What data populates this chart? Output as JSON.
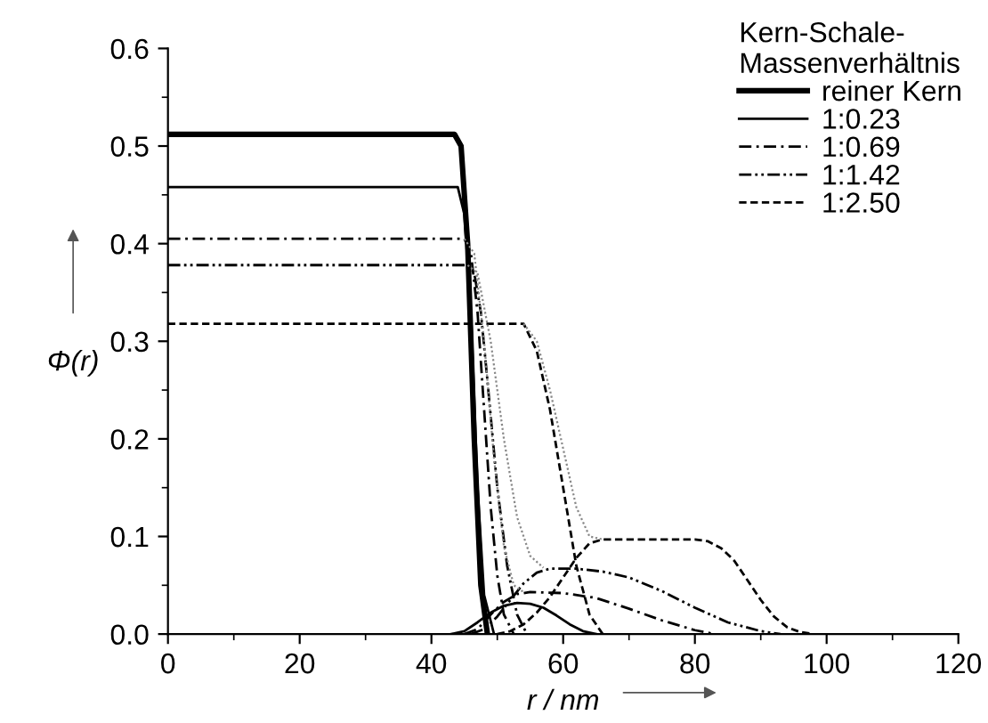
{
  "chart_data": {
    "type": "line",
    "xlabel": "r / nm",
    "ylabel": "Φ(r)",
    "legend_title": "Kern-Schale-\nMassenverhältnis",
    "xlim": [
      0,
      120
    ],
    "xticks": [
      0,
      20,
      40,
      60,
      80,
      100,
      120
    ],
    "ylim": [
      0,
      0.6
    ],
    "yticks": [
      {
        "value": 0,
        "label": "0.0"
      },
      0.1,
      0.2,
      0.3,
      0.4,
      0.5,
      0.6
    ],
    "grid": false,
    "legend": "top right",
    "marker": "none",
    "series": [
      {
        "name": "reiner Kern",
        "color": "#000000",
        "line_style": "solid",
        "x": [
          0,
          43.5,
          44.5,
          45.5,
          46.5,
          47.5,
          48.5
        ],
        "values": [
          0.512,
          0.512,
          0.5,
          0.4,
          0.2,
          0.05,
          0
        ]
      },
      {
        "name": "1:0.23",
        "color": "#000000",
        "line_style": "solid",
        "x": [
          0,
          44,
          45,
          46,
          47,
          48,
          49.5
        ],
        "values": [
          0.458,
          0.458,
          0.43,
          0.33,
          0.15,
          0.04,
          0
        ]
      },
      {
        "name": "1:0.69",
        "color": "#000000",
        "line_style": "dashdot",
        "x": [
          0,
          45,
          46,
          47,
          48,
          49,
          50,
          51,
          52.5
        ],
        "values": [
          0.405,
          0.405,
          0.39,
          0.33,
          0.23,
          0.13,
          0.06,
          0.02,
          0
        ]
      },
      {
        "name": "1:1.42",
        "color": "#000000",
        "line_style": "dashdotdot",
        "x": [
          0,
          45.5,
          46.5,
          47.5,
          48.5,
          50,
          51.5,
          53,
          54.5
        ],
        "values": [
          0.378,
          0.378,
          0.37,
          0.33,
          0.26,
          0.15,
          0.07,
          0.02,
          0
        ]
      },
      {
        "name": "1:2.50",
        "color": "#000000",
        "line_style": "dashed",
        "x": [
          0,
          54,
          56,
          58,
          60,
          62,
          64,
          66
        ],
        "values": [
          0.318,
          0.318,
          0.29,
          0.23,
          0.15,
          0.07,
          0.02,
          0
        ]
      },
      {
        "color": "#000000",
        "line_style": "solid",
        "x": [
          43,
          45,
          47,
          49,
          51,
          53,
          55,
          57,
          59,
          61,
          63,
          65
        ],
        "values": [
          0,
          0.003,
          0.012,
          0.022,
          0.029,
          0.032,
          0.031,
          0.027,
          0.019,
          0.01,
          0.003,
          0
        ]
      },
      {
        "color": "#000000",
        "line_style": "dashdot",
        "x": [
          45,
          47,
          49,
          51,
          53,
          55,
          60,
          65,
          70,
          75,
          80,
          83
        ],
        "values": [
          0,
          0.005,
          0.02,
          0.033,
          0.041,
          0.043,
          0.042,
          0.037,
          0.026,
          0.014,
          0.004,
          0
        ]
      },
      {
        "color": "#000000",
        "line_style": "dashdotdot",
        "x": [
          46,
          48,
          50,
          52,
          54,
          56,
          58,
          62,
          66,
          70,
          75,
          80,
          85,
          90,
          93
        ],
        "values": [
          0,
          0.005,
          0.018,
          0.035,
          0.052,
          0.063,
          0.067,
          0.067,
          0.064,
          0.058,
          0.044,
          0.027,
          0.012,
          0.003,
          0
        ]
      },
      {
        "color": "#000000",
        "line_style": "dashed",
        "x": [
          50,
          52,
          54,
          56,
          58,
          60,
          62,
          64,
          66,
          80,
          82,
          84,
          86,
          88,
          90,
          92,
          94,
          96,
          98
        ],
        "values": [
          0,
          0.003,
          0.01,
          0.022,
          0.038,
          0.058,
          0.078,
          0.093,
          0.097,
          0.097,
          0.095,
          0.088,
          0.075,
          0.055,
          0.035,
          0.018,
          0.007,
          0.002,
          0
        ]
      },
      {
        "color": "#888888",
        "line_style": "dotted",
        "x": [
          45,
          46.5,
          48,
          49.5,
          51,
          52.5,
          54
        ],
        "values": [
          0.405,
          0.39,
          0.3,
          0.18,
          0.09,
          0.05,
          0.043
        ]
      },
      {
        "color": "#888888",
        "line_style": "dotted",
        "x": [
          45.5,
          47,
          49,
          51,
          53,
          55,
          57
        ],
        "values": [
          0.378,
          0.37,
          0.3,
          0.2,
          0.12,
          0.08,
          0.068
        ]
      },
      {
        "color": "#888888",
        "line_style": "dotted",
        "x": [
          54,
          56,
          58,
          60,
          62,
          64,
          66
        ],
        "values": [
          0.318,
          0.3,
          0.25,
          0.19,
          0.13,
          0.1,
          0.097
        ]
      }
    ]
  }
}
